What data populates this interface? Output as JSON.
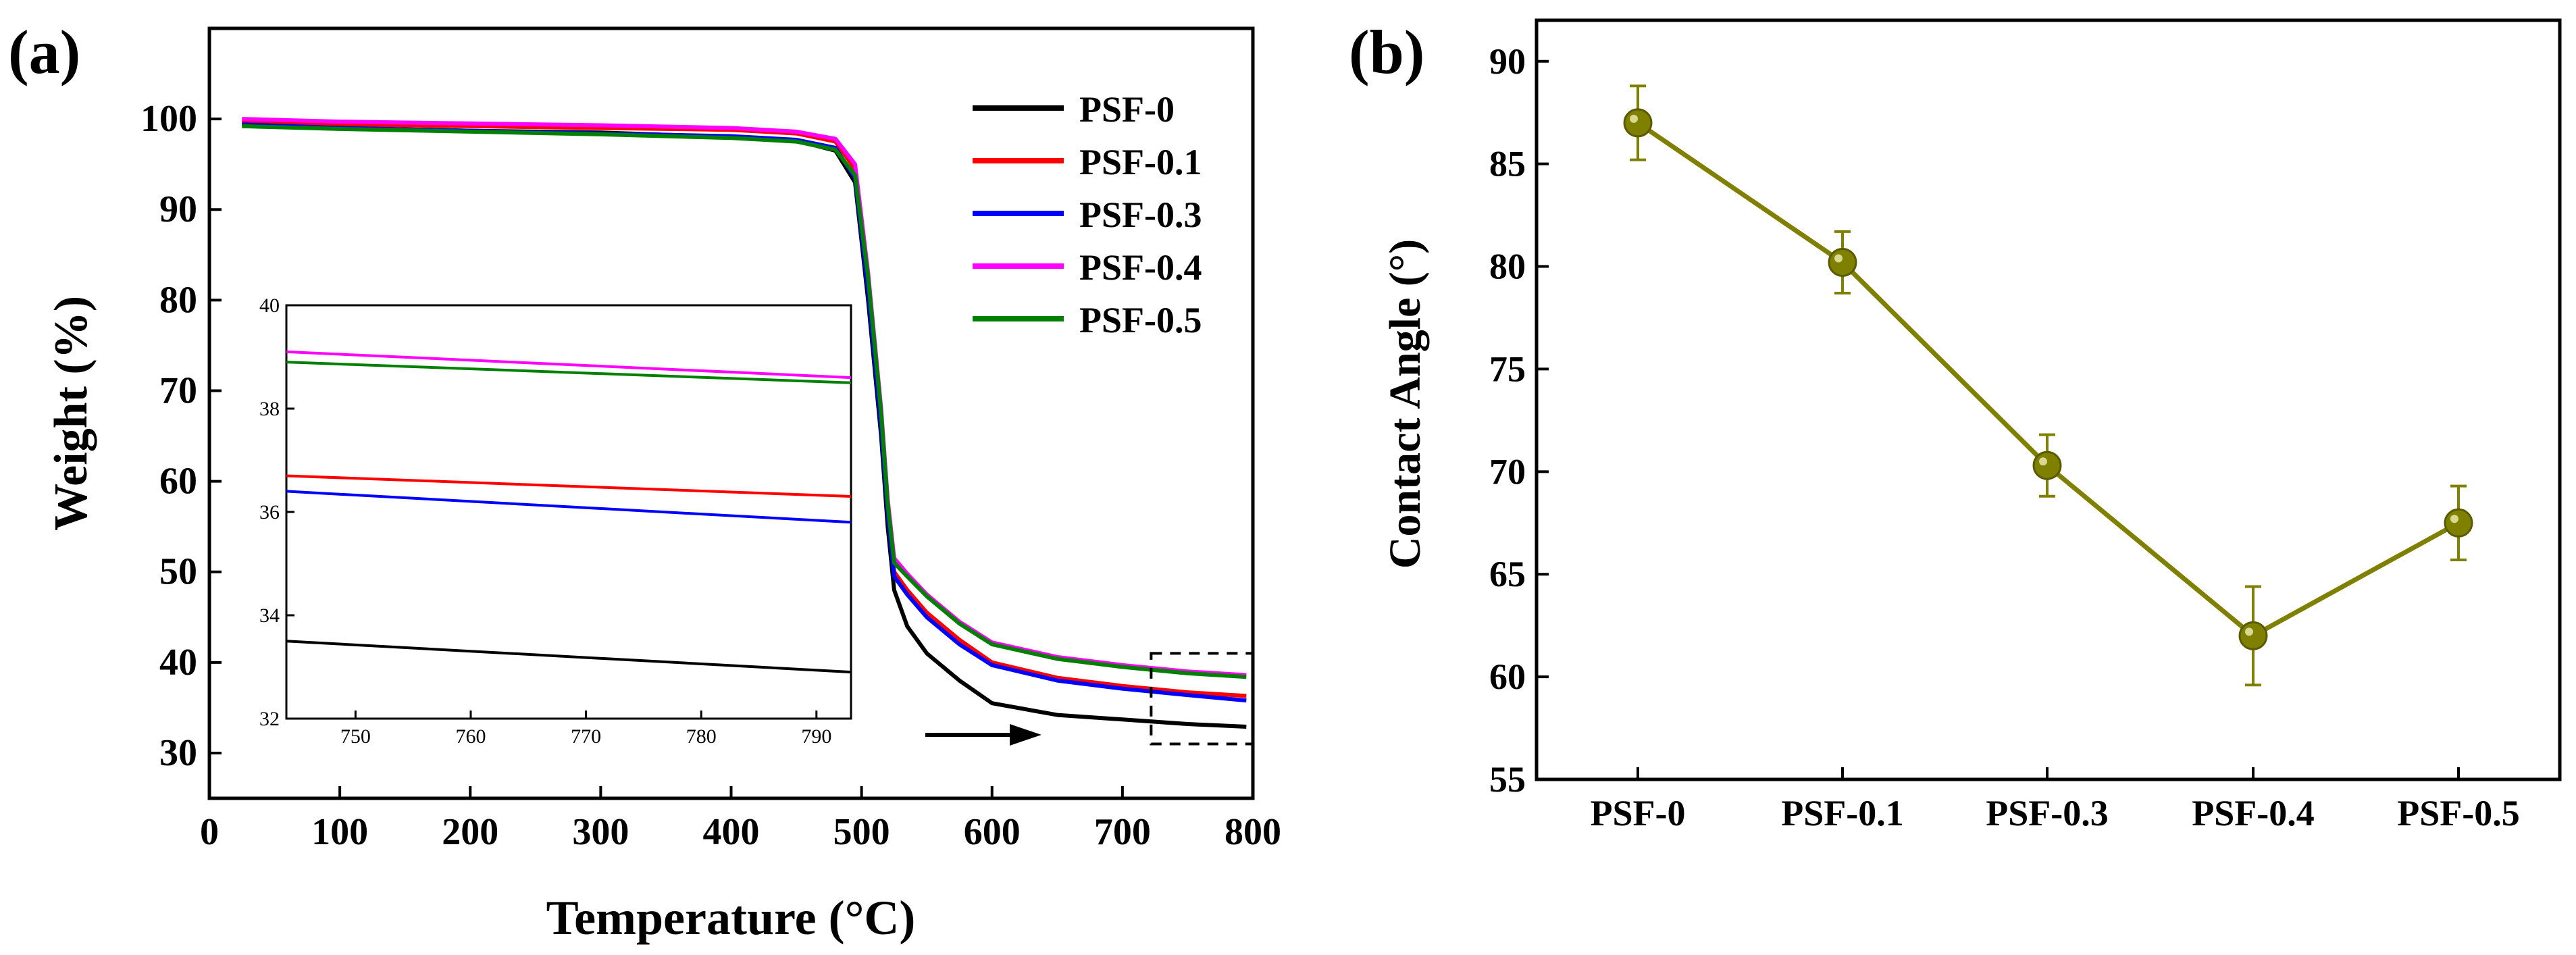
{
  "chart_data": [
    {
      "panel_label": "(a)",
      "type": "line",
      "xlabel": "Temperature (°C)",
      "ylabel": "Weight (%)",
      "xlim": [
        0,
        800
      ],
      "ylim": [
        25,
        110
      ],
      "xticks": [
        "0",
        "100",
        "200",
        "300",
        "400",
        "500",
        "600",
        "700",
        "800"
      ],
      "yticks": [
        "30",
        "40",
        "50",
        "60",
        "70",
        "80",
        "90",
        "100"
      ],
      "legend_position": "top-right",
      "arrow_annotation": "points toward zoomed region 720-800 °C",
      "series": [
        {
          "name": "PSF-0",
          "color": "#000000",
          "x": [
            25,
            100,
            200,
            300,
            400,
            450,
            480,
            495,
            505,
            515,
            520,
            525,
            535,
            550,
            575,
            600,
            650,
            700,
            750,
            795
          ],
          "y": [
            99.5,
            99,
            98.7,
            98.5,
            98,
            97.6,
            96.5,
            93,
            80,
            65,
            55,
            48,
            44,
            41,
            38,
            35.5,
            34.2,
            33.7,
            33.2,
            32.9
          ]
        },
        {
          "name": "PSF-0.1",
          "color": "#ff0000",
          "x": [
            25,
            100,
            200,
            300,
            400,
            450,
            480,
            495,
            505,
            515,
            520,
            525,
            535,
            550,
            575,
            600,
            650,
            700,
            750,
            795
          ],
          "y": [
            99.8,
            99.4,
            99.2,
            99,
            98.8,
            98.4,
            97.5,
            94.5,
            82,
            67,
            57,
            50,
            48,
            45.5,
            42.5,
            40,
            38.3,
            37.4,
            36.7,
            36.3
          ]
        },
        {
          "name": "PSF-0.3",
          "color": "#0000ff",
          "x": [
            25,
            100,
            200,
            300,
            400,
            450,
            480,
            495,
            505,
            515,
            520,
            525,
            535,
            550,
            575,
            600,
            650,
            700,
            750,
            795
          ],
          "y": [
            99.4,
            99,
            98.7,
            98.4,
            98.1,
            97.7,
            96.8,
            93.5,
            81,
            66,
            56.5,
            49.5,
            47.5,
            45,
            42,
            39.7,
            38,
            37.1,
            36.4,
            35.8
          ]
        },
        {
          "name": "PSF-0.4",
          "color": "#ff00ff",
          "x": [
            25,
            100,
            200,
            300,
            400,
            450,
            480,
            495,
            505,
            515,
            520,
            525,
            535,
            550,
            575,
            600,
            650,
            700,
            750,
            795
          ],
          "y": [
            100,
            99.7,
            99.5,
            99.3,
            99,
            98.6,
            97.8,
            95,
            83,
            68,
            58,
            51.5,
            49.8,
            47.5,
            44.5,
            42.2,
            40.6,
            39.7,
            39,
            38.6
          ]
        },
        {
          "name": "PSF-0.5",
          "color": "#008000",
          "x": [
            25,
            100,
            200,
            300,
            400,
            450,
            480,
            495,
            505,
            515,
            520,
            525,
            535,
            550,
            575,
            600,
            650,
            700,
            750,
            795
          ],
          "y": [
            99.2,
            98.9,
            98.6,
            98.3,
            97.9,
            97.5,
            96.6,
            93.8,
            82.5,
            67.5,
            57.5,
            51,
            49.5,
            47.3,
            44.3,
            42,
            40.4,
            39.5,
            38.8,
            38.4
          ]
        }
      ],
      "inset": {
        "xlim": [
          744,
          793
        ],
        "ylim": [
          32,
          40
        ],
        "xticks": [
          "750",
          "760",
          "770",
          "780",
          "790"
        ],
        "yticks": [
          "32",
          "34",
          "36",
          "38",
          "40"
        ],
        "series": [
          {
            "name": "PSF-0",
            "color": "#000000",
            "x": [
              744,
              793
            ],
            "y": [
              33.5,
              32.9
            ]
          },
          {
            "name": "PSF-0.1",
            "color": "#ff0000",
            "x": [
              744,
              793
            ],
            "y": [
              36.7,
              36.3
            ]
          },
          {
            "name": "PSF-0.3",
            "color": "#0000ff",
            "x": [
              744,
              793
            ],
            "y": [
              36.4,
              35.8
            ]
          },
          {
            "name": "PSF-0.4",
            "color": "#ff00ff",
            "x": [
              744,
              793
            ],
            "y": [
              39.1,
              38.6
            ]
          },
          {
            "name": "PSF-0.5",
            "color": "#008000",
            "x": [
              744,
              793
            ],
            "y": [
              38.9,
              38.5
            ]
          }
        ]
      },
      "zoom_box": {
        "xmin": 722,
        "xmax": 800,
        "ymin": 31,
        "ymax": 41
      }
    },
    {
      "panel_label": "(b)",
      "type": "line",
      "xlabel": "",
      "ylabel": "Contact Angle (°)",
      "ylim": [
        55,
        92
      ],
      "yticks": [
        "55",
        "60",
        "65",
        "70",
        "75",
        "80",
        "85",
        "90"
      ],
      "categories": [
        "PSF-0",
        "PSF-0.1",
        "PSF-0.3",
        "PSF-0.4",
        "PSF-0.5"
      ],
      "color": "#808000",
      "series": [
        {
          "name": "Contact Angle",
          "values": [
            87.0,
            80.2,
            70.3,
            62.0,
            67.5
          ],
          "errors": [
            1.8,
            1.5,
            1.5,
            2.4,
            1.8
          ]
        }
      ]
    }
  ]
}
